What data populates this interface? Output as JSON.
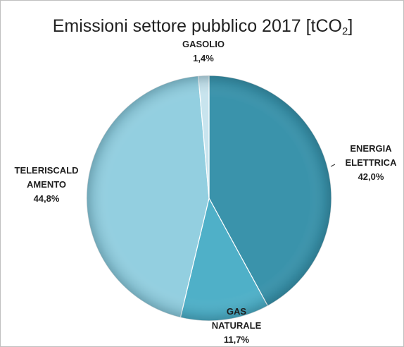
{
  "chart_data": {
    "type": "pie",
    "title": {
      "main": "Emissioni settore pubblico 2017 [tCO",
      "sub": "2",
      "close": "]"
    },
    "slices": [
      {
        "label": [
          "ENERGIA",
          "ELETTRICA"
        ],
        "value": 42.0,
        "value_label": "42,0%",
        "color": "#3a93ab"
      },
      {
        "label": [
          "GAS",
          "NATURALE"
        ],
        "value": 11.7,
        "value_label": "11,7%",
        "color": "#4fb0c8"
      },
      {
        "label": [
          "TELERISCALD",
          "AMENTO"
        ],
        "value": 44.8,
        "value_label": "44,8%",
        "color": "#93cfe0"
      },
      {
        "label": [
          "GASOLIO"
        ],
        "value": 1.4,
        "value_label": "1,4%",
        "color": "#c8e4ee"
      }
    ],
    "start_angle_deg": 0,
    "direction": "clockwise",
    "legend": "none",
    "data_labels": "outside"
  }
}
